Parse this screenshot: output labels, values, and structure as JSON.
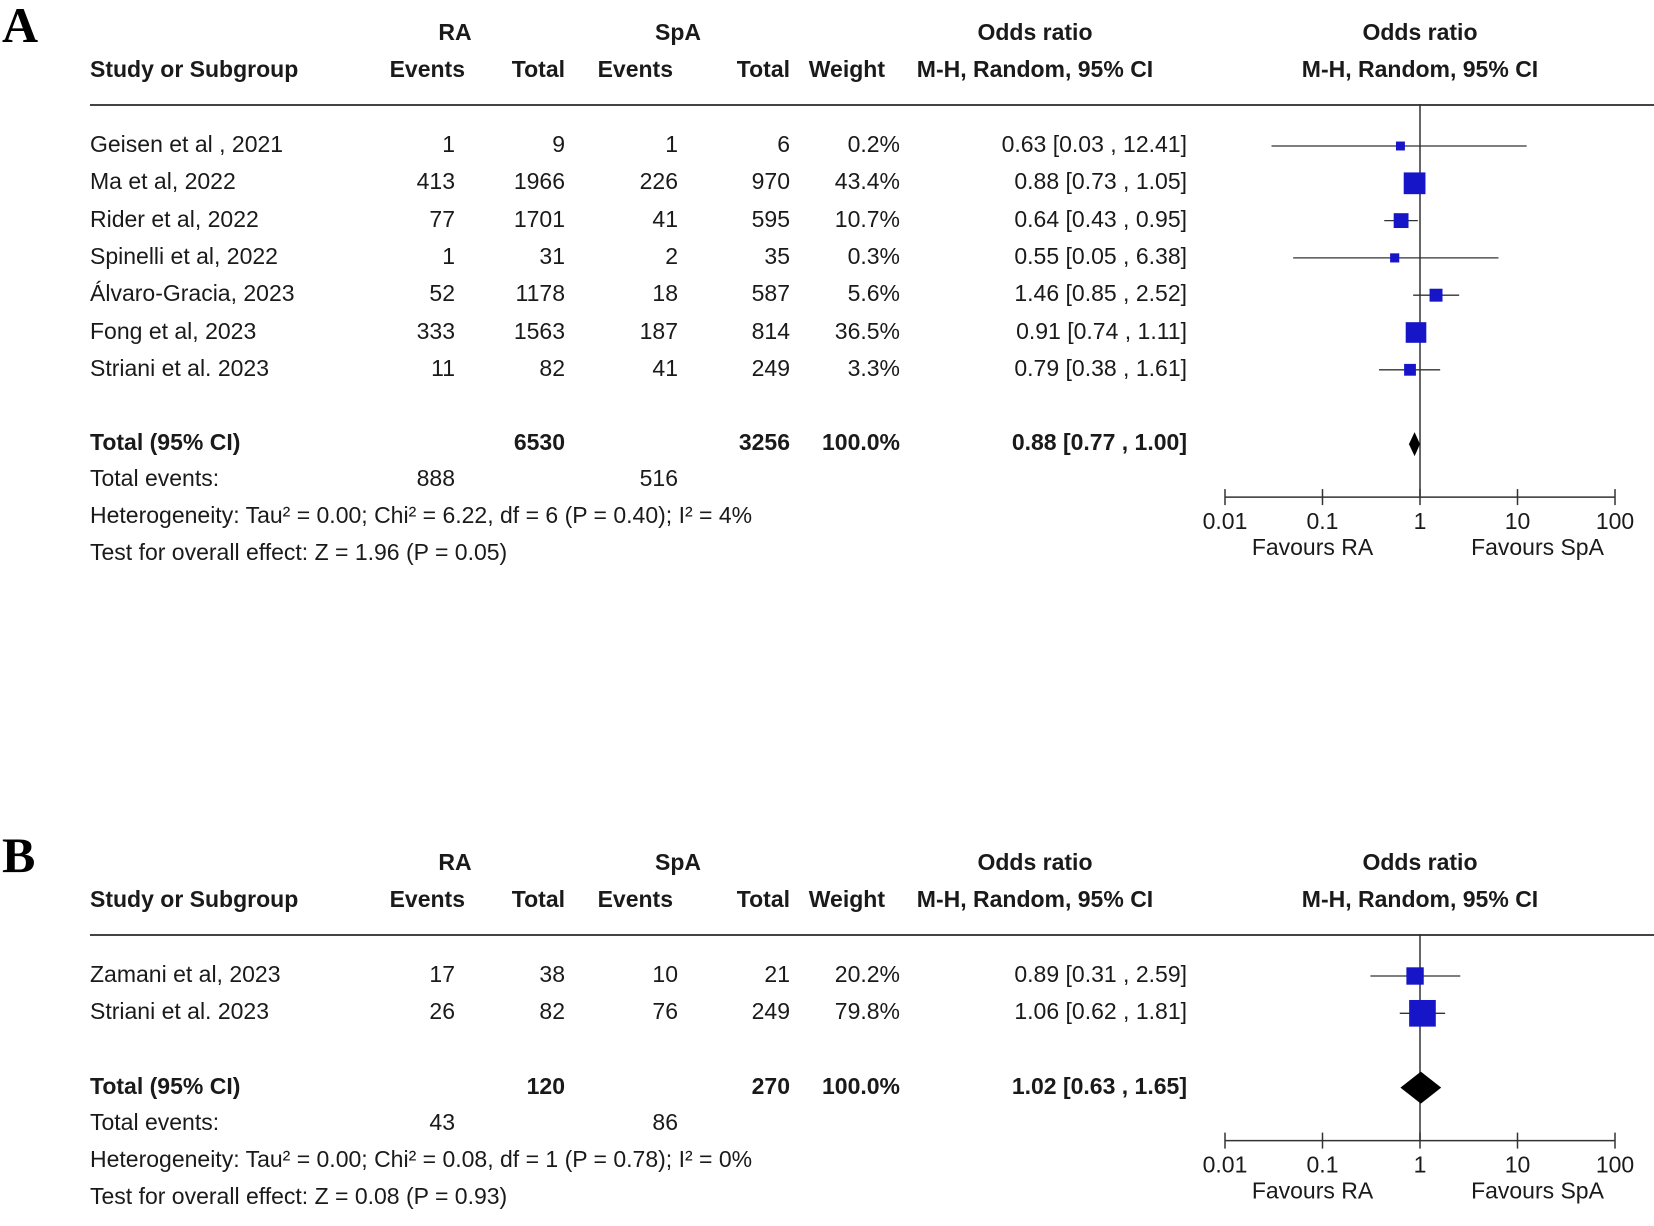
{
  "chart_data": [
    {
      "panel_label": "A",
      "type": "forest",
      "headers": {
        "group1": "RA",
        "group2": "SpA",
        "study_col": "Study or Subgroup",
        "events": "Events",
        "total": "Total",
        "weight": "Weight",
        "or_title": "Odds ratio",
        "or_method": "M-H, Random, 95% CI",
        "plot_title": "Odds ratio",
        "plot_method": "M-H, Random, 95% CI"
      },
      "studies": [
        {
          "name": "Geisen et al , 2021",
          "e1": "1",
          "t1": "9",
          "e2": "1",
          "t2": "6",
          "weight": "0.2%",
          "or_text": "0.63 [0.03 , 12.41]",
          "or": 0.63,
          "lo": 0.03,
          "hi": 12.41,
          "w": 0.2
        },
        {
          "name": "Ma et al, 2022",
          "e1": "413",
          "t1": "1966",
          "e2": "226",
          "t2": "970",
          "weight": "43.4%",
          "or_text": "0.88 [0.73 , 1.05]",
          "or": 0.88,
          "lo": 0.73,
          "hi": 1.05,
          "w": 43.4
        },
        {
          "name": "Rider et al, 2022",
          "e1": "77",
          "t1": "1701",
          "e2": "41",
          "t2": "595",
          "weight": "10.7%",
          "or_text": "0.64 [0.43 , 0.95]",
          "or": 0.64,
          "lo": 0.43,
          "hi": 0.95,
          "w": 10.7
        },
        {
          "name": "Spinelli et al, 2022",
          "e1": "1",
          "t1": "31",
          "e2": "2",
          "t2": "35",
          "weight": "0.3%",
          "or_text": "0.55 [0.05 , 6.38]",
          "or": 0.55,
          "lo": 0.05,
          "hi": 6.38,
          "w": 0.3
        },
        {
          "name": "Álvaro-Gracia, 2023",
          "e1": "52",
          "t1": "1178",
          "e2": "18",
          "t2": "587",
          "weight": "5.6%",
          "or_text": "1.46 [0.85 , 2.52]",
          "or": 1.46,
          "lo": 0.85,
          "hi": 2.52,
          "w": 5.6
        },
        {
          "name": "Fong et al, 2023",
          "e1": "333",
          "t1": "1563",
          "e2": "187",
          "t2": "814",
          "weight": "36.5%",
          "or_text": "0.91 [0.74 , 1.11]",
          "or": 0.91,
          "lo": 0.74,
          "hi": 1.11,
          "w": 36.5
        },
        {
          "name": "Striani et al. 2023",
          "e1": "11",
          "t1": "82",
          "e2": "41",
          "t2": "249",
          "weight": "3.3%",
          "or_text": "0.79 [0.38 , 1.61]",
          "or": 0.79,
          "lo": 0.38,
          "hi": 1.61,
          "w": 3.3
        }
      ],
      "total": {
        "label": "Total (95% CI)",
        "t1": "6530",
        "t2": "3256",
        "weight": "100.0%",
        "or_text": "0.88 [0.77 , 1.00]",
        "or": 0.88,
        "lo": 0.77,
        "hi": 1.0
      },
      "total_events": {
        "label": "Total events:",
        "e1": "888",
        "e2": "516"
      },
      "heterogeneity": "Heterogeneity: Tau² = 0.00; Chi² = 6.22, df = 6 (P = 0.40); I² = 4%",
      "overall_effect": "Test for overall effect: Z = 1.96 (P = 0.05)",
      "axis": {
        "ticks": [
          0.01,
          0.1,
          1,
          10,
          100
        ],
        "tick_labels": [
          "0.01",
          "0.1",
          "1",
          "10",
          "100"
        ],
        "scale": "log",
        "range": [
          0.01,
          100
        ]
      },
      "favours_left": "Favours RA",
      "favours_right": "Favours SpA"
    },
    {
      "panel_label": "B",
      "type": "forest",
      "headers": {
        "group1": "RA",
        "group2": "SpA",
        "study_col": "Study or Subgroup",
        "events": "Events",
        "total": "Total",
        "weight": "Weight",
        "or_title": "Odds ratio",
        "or_method": "M-H, Random, 95% CI",
        "plot_title": "Odds ratio",
        "plot_method": "M-H, Random, 95% CI"
      },
      "studies": [
        {
          "name": "Zamani et al, 2023",
          "e1": "17",
          "t1": "38",
          "e2": "10",
          "t2": "21",
          "weight": "20.2%",
          "or_text": "0.89 [0.31 , 2.59]",
          "or": 0.89,
          "lo": 0.31,
          "hi": 2.59,
          "w": 20.2
        },
        {
          "name": "Striani et al. 2023",
          "e1": "26",
          "t1": "82",
          "e2": "76",
          "t2": "249",
          "weight": "79.8%",
          "or_text": "1.06 [0.62 , 1.81]",
          "or": 1.06,
          "lo": 0.62,
          "hi": 1.81,
          "w": 79.8
        }
      ],
      "total": {
        "label": "Total (95% CI)",
        "t1": "120",
        "t2": "270",
        "weight": "100.0%",
        "or_text": "1.02 [0.63 , 1.65]",
        "or": 1.02,
        "lo": 0.63,
        "hi": 1.65
      },
      "total_events": {
        "label": "Total events:",
        "e1": "43",
        "e2": "86"
      },
      "heterogeneity": "Heterogeneity: Tau² = 0.00; Chi² = 0.08, df = 1 (P = 0.78); I² = 0%",
      "overall_effect": "Test for overall effect: Z = 0.08 (P = 0.93)",
      "axis": {
        "ticks": [
          0.01,
          0.1,
          1,
          10,
          100
        ],
        "tick_labels": [
          "0.01",
          "0.1",
          "1",
          "10",
          "100"
        ],
        "scale": "log",
        "range": [
          0.01,
          100
        ]
      },
      "favours_left": "Favours RA",
      "favours_right": "Favours SpA"
    }
  ],
  "colors": {
    "marker": "#1616c8",
    "diamond": "#000000",
    "line": "#333333"
  }
}
